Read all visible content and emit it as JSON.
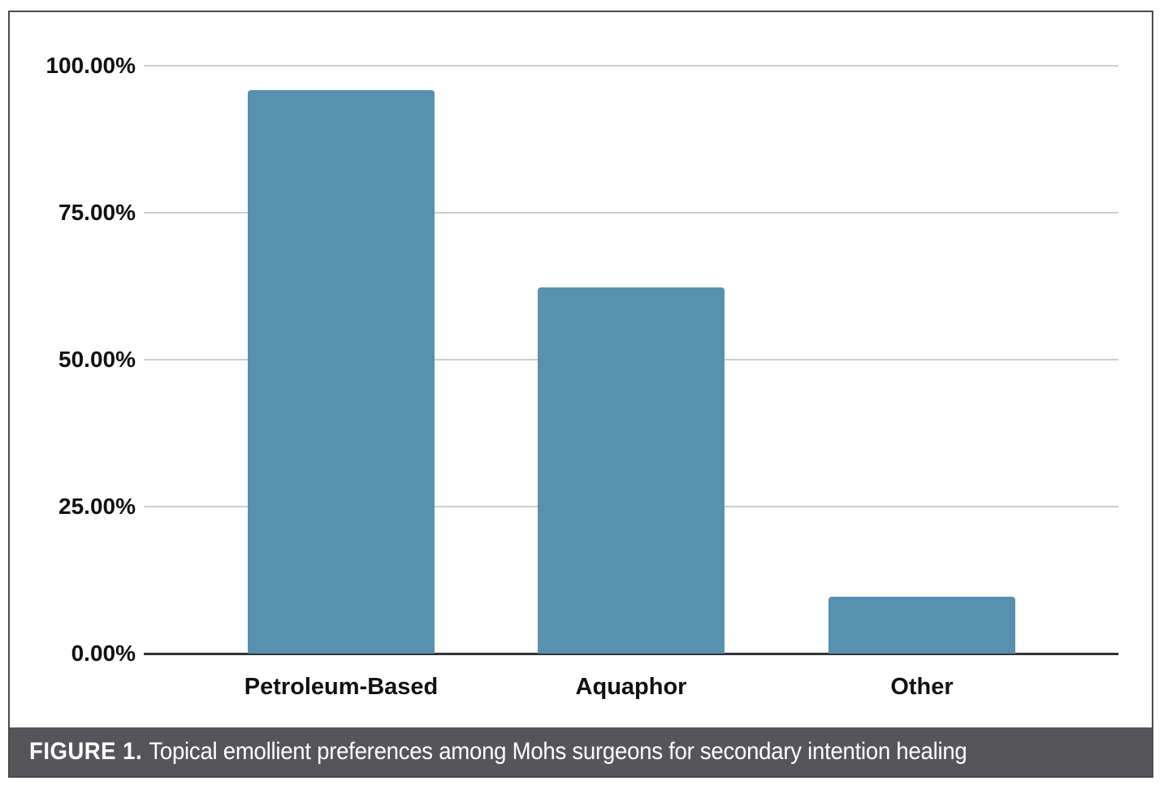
{
  "figure": {
    "caption_label": "FIGURE 1.",
    "caption_text": "Topical emollient preferences among Mohs surgeons for secondary intention healing"
  },
  "chart_data": {
    "type": "bar",
    "title": "",
    "xlabel": "",
    "ylabel": "",
    "categories": [
      "Petroleum-Based",
      "Aquaphor",
      "Other"
    ],
    "values": [
      95.9,
      62.3,
      9.7
    ],
    "ylim": [
      0,
      100
    ],
    "grid": true,
    "legend": "none",
    "y_ticks": [
      {
        "value": 100,
        "label": "100.00%"
      },
      {
        "value": 75,
        "label": "75.00%"
      },
      {
        "value": 50,
        "label": "50.00%"
      },
      {
        "value": 25,
        "label": "25.00%"
      },
      {
        "value": 0,
        "label": "0.00%"
      }
    ],
    "colors": {
      "bar": "#5890B0",
      "gridline": "#CCCCCC",
      "axis_line": "#333333",
      "border": "#4A4A4A",
      "caption_background": "#565559",
      "caption_text": "#FFFFFF",
      "tick_text": "#111111"
    }
  }
}
